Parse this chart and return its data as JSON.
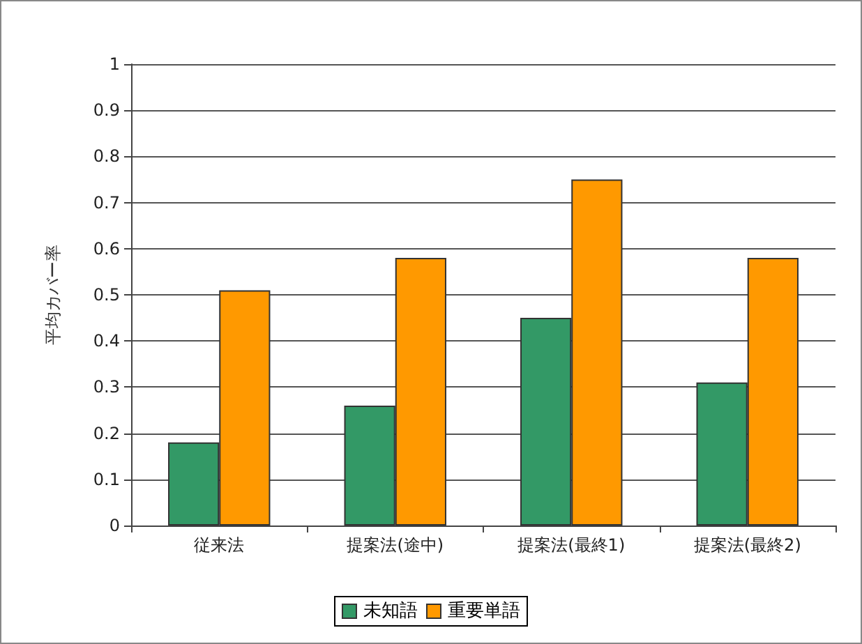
{
  "chart_data": {
    "type": "bar",
    "ylabel": "平均カバー率",
    "categories": [
      "従来法",
      "提案法(途中)",
      "提案法(最終1)",
      "提案法(最終2)"
    ],
    "series": [
      {
        "name": "未知語",
        "color": "#339966",
        "values": [
          0.18,
          0.26,
          0.45,
          0.31
        ]
      },
      {
        "name": "重要単語",
        "color": "#ff9900",
        "values": [
          0.51,
          0.58,
          0.75,
          0.58
        ]
      }
    ],
    "ylim": [
      0,
      1
    ],
    "yticks": [
      0,
      0.1,
      0.2,
      0.3,
      0.4,
      0.5,
      0.6,
      0.7,
      0.8,
      0.9,
      1
    ],
    "grid": "y",
    "legend": "bottom"
  }
}
